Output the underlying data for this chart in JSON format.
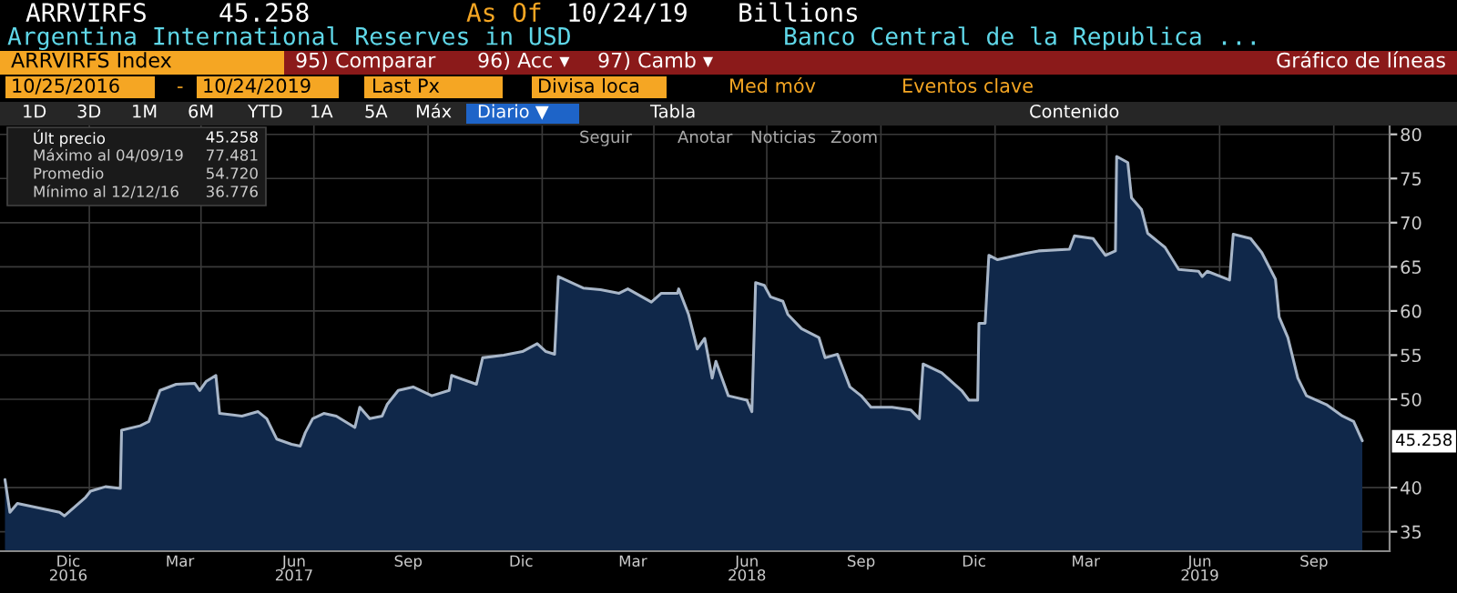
{
  "chart_data": {
    "type": "area",
    "title": "Argentina International Reserves in USD",
    "subtitle": "Banco Central de la Republica ...",
    "annotations": [
      "ARRVIRFS",
      "45.258",
      "As Of",
      "10/24/19",
      "Billions",
      "ARRVIRFS Index",
      "95) Comparar",
      "96) Acc ▾",
      "97) Camb ▾",
      "Gráfico de líneas",
      "10/25/2016",
      "-",
      "10/24/2019",
      "Last Px",
      "Divisa loca",
      "Med móv",
      "Eventos clave",
      "1D",
      "3D",
      "1M",
      "6M",
      "YTD",
      "1A",
      "5A",
      "Máx",
      "Diario ▼",
      "Tabla",
      "Contenido",
      "Seguir",
      "Anotar",
      "Noticias",
      "Zoom",
      "Últ precio",
      "45.258",
      "Máximo al 04/09/19",
      "77.481",
      "Promedio",
      "54.720",
      "Mínimo al 12/12/16",
      "36.776",
      {
        "text": "45.258",
        "x": "2019-10-24",
        "y": 45.258
      }
    ],
    "x": [
      "2016-10-25",
      "2016-10-29",
      "2016-11-04",
      "2016-12-08",
      "2016-12-12",
      "2016-12-29",
      "2017-01-02",
      "2017-01-14",
      "2017-01-26",
      "2017-01-27",
      "2017-02-11",
      "2017-02-18",
      "2017-02-22",
      "2017-02-27",
      "2017-03-12",
      "2017-03-27",
      "2017-03-31",
      "2017-04-05",
      "2017-04-13",
      "2017-04-16",
      "2017-05-04",
      "2017-05-17",
      "2017-05-24",
      "2017-06-01",
      "2017-06-13",
      "2017-06-20",
      "2017-06-24",
      "2017-06-30",
      "2017-07-09",
      "2017-07-19",
      "2017-08-03",
      "2017-08-07",
      "2017-08-15",
      "2017-08-25",
      "2017-08-29",
      "2017-09-07",
      "2017-09-19",
      "2017-10-04",
      "2017-10-18",
      "2017-10-20",
      "2017-11-09",
      "2017-11-14",
      "2017-12-01",
      "2017-12-16",
      "2017-12-28",
      "2018-01-04",
      "2018-01-11",
      "2018-01-14",
      "2018-02-03",
      "2018-02-17",
      "2018-03-04",
      "2018-03-11",
      "2018-03-30",
      "2018-04-07",
      "2018-04-20",
      "2018-04-21",
      "2018-04-29",
      "2018-05-06",
      "2018-05-12",
      "2018-05-18",
      "2018-05-21",
      "2018-05-31",
      "2018-06-15",
      "2018-06-19",
      "2018-06-22",
      "2018-06-29",
      "2018-07-04",
      "2018-07-14",
      "2018-07-18",
      "2018-07-29",
      "2018-08-12",
      "2018-08-17",
      "2018-08-27",
      "2018-09-06",
      "2018-09-15",
      "2018-09-23",
      "2018-10-10",
      "2018-10-25",
      "2018-11-01",
      "2018-11-04",
      "2018-11-19",
      "2018-12-05",
      "2018-12-11",
      "2018-12-18",
      "2018-12-19",
      "2018-12-24",
      "2018-12-27",
      "2019-01-03",
      "2019-01-25",
      "2019-02-05",
      "2019-03-02",
      "2019-03-06",
      "2019-03-21",
      "2019-03-31",
      "2019-04-08",
      "2019-04-09",
      "2019-04-18",
      "2019-04-21",
      "2019-04-29",
      "2019-05-04",
      "2019-05-18",
      "2019-05-29",
      "2019-06-14",
      "2019-06-17",
      "2019-06-21",
      "2019-07-09",
      "2019-07-12",
      "2019-07-26",
      "2019-08-04",
      "2019-08-15",
      "2019-08-18",
      "2019-08-25",
      "2019-09-02",
      "2019-09-09",
      "2019-09-25",
      "2019-10-08",
      "2019-10-17",
      "2019-10-24"
    ],
    "series": [
      {
        "color": "#10284a",
        "values": [
          40.9,
          37.2,
          38.2,
          37.2,
          36.8,
          38.9,
          39.6,
          40.1,
          39.9,
          46.5,
          47.0,
          47.5,
          49.1,
          51.0,
          51.7,
          51.8,
          51.0,
          52.0,
          52.7,
          48.4,
          48.1,
          48.6,
          47.8,
          45.5,
          44.9,
          44.7,
          46.2,
          47.8,
          48.4,
          48.1,
          46.8,
          49.1,
          47.8,
          48.1,
          49.4,
          51.0,
          51.4,
          50.4,
          51.0,
          52.7,
          51.7,
          54.7,
          55.0,
          55.4,
          56.3,
          55.4,
          55.1,
          63.9,
          62.6,
          62.4,
          62.0,
          62.5,
          61.0,
          62.0,
          62.0,
          62.5,
          59.6,
          55.7,
          56.9,
          52.4,
          54.3,
          50.4,
          49.9,
          48.6,
          63.2,
          62.9,
          61.6,
          61.1,
          59.6,
          58.0,
          57.0,
          54.7,
          55.1,
          51.4,
          50.4,
          49.1,
          49.1,
          48.8,
          47.8,
          54.0,
          53.0,
          51.0,
          49.9,
          49.9,
          58.6,
          58.6,
          66.3,
          65.8,
          66.5,
          66.8,
          67.0,
          68.5,
          68.2,
          66.3,
          66.8,
          77.5,
          76.8,
          72.8,
          71.5,
          68.8,
          67.2,
          64.7,
          64.5,
          63.9,
          64.5,
          63.5,
          68.7,
          68.2,
          66.6,
          63.6,
          59.3,
          57.0,
          52.4,
          50.4,
          49.4,
          48.1,
          47.5,
          45.3
        ]
      }
    ],
    "xlim": [
      "2016-10-21",
      "2019-11-15"
    ],
    "ylim": [
      32.8,
      81
    ],
    "yticks": [
      35,
      40,
      50,
      55,
      60,
      65,
      70,
      75,
      80
    ],
    "xticks": [
      {
        "value": "2016-12-15",
        "label": "Dic\n2016"
      },
      {
        "value": "2017-01-01",
        "label": null
      },
      {
        "value": "2017-03-15",
        "label": "Mar"
      },
      {
        "value": "2017-04-01",
        "label": null
      },
      {
        "value": "2017-06-15",
        "label": "Jun\n2017"
      },
      {
        "value": "2017-07-01",
        "label": null
      },
      {
        "value": "2017-09-15",
        "label": "Sep"
      },
      {
        "value": "2017-10-01",
        "label": null
      },
      {
        "value": "2017-12-15",
        "label": "Dic"
      },
      {
        "value": "2018-01-01",
        "label": null
      },
      {
        "value": "2018-03-15",
        "label": "Mar"
      },
      {
        "value": "2018-04-01",
        "label": null
      },
      {
        "value": "2018-06-15",
        "label": "Jun\n2018"
      },
      {
        "value": "2018-07-01",
        "label": null
      },
      {
        "value": "2018-09-15",
        "label": "Sep"
      },
      {
        "value": "2018-10-01",
        "label": null
      },
      {
        "value": "2018-12-15",
        "label": "Dic"
      },
      {
        "value": "2019-01-01",
        "label": null
      },
      {
        "value": "2019-03-15",
        "label": "Mar"
      },
      {
        "value": "2019-04-01",
        "label": null
      },
      {
        "value": "2019-06-15",
        "label": "Jun\n2019"
      },
      {
        "value": "2019-07-01",
        "label": null
      },
      {
        "value": "2019-09-15",
        "label": "Sep"
      },
      {
        "value": "2019-10-01",
        "label": null
      }
    ],
    "grid": true
  }
}
